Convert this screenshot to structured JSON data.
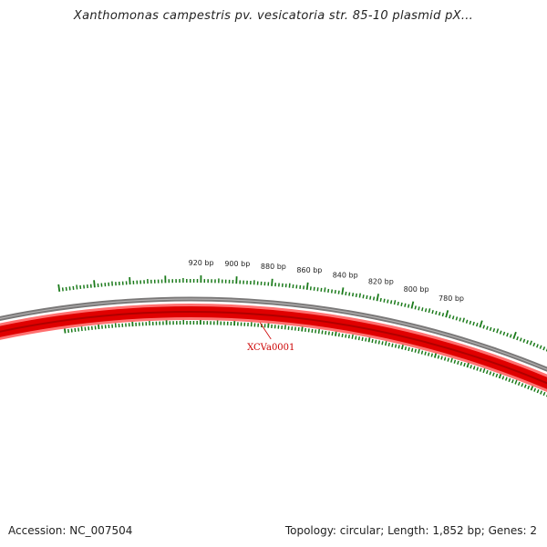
{
  "title": "Xanthomonas campestris pv. vesicatoria str. 85-10 plasmid pX...",
  "accession": "Accession: NC_007504",
  "summary": "Topology: circular; Length: 1,852 bp; Genes: 2",
  "colors": {
    "backbone": "#7a7878",
    "gene_main": "#e00000",
    "gene_edge": "#ff7070",
    "gene_core": "#b00000",
    "ticks": "#1a7a1a",
    "gene_label": "#cc0000"
  },
  "tick_labels": [
    {
      "bp": 780,
      "label": "780 bp"
    },
    {
      "bp": 800,
      "label": "800 bp"
    },
    {
      "bp": 820,
      "label": "820 bp"
    },
    {
      "bp": 840,
      "label": "840 bp"
    },
    {
      "bp": 860,
      "label": "860 bp"
    },
    {
      "bp": 880,
      "label": "880 bp"
    },
    {
      "bp": 900,
      "label": "900 bp"
    },
    {
      "bp": 920,
      "label": "920 bp"
    }
  ],
  "genes": [
    {
      "name": "XCVa0001",
      "strand": "reverse"
    }
  ]
}
